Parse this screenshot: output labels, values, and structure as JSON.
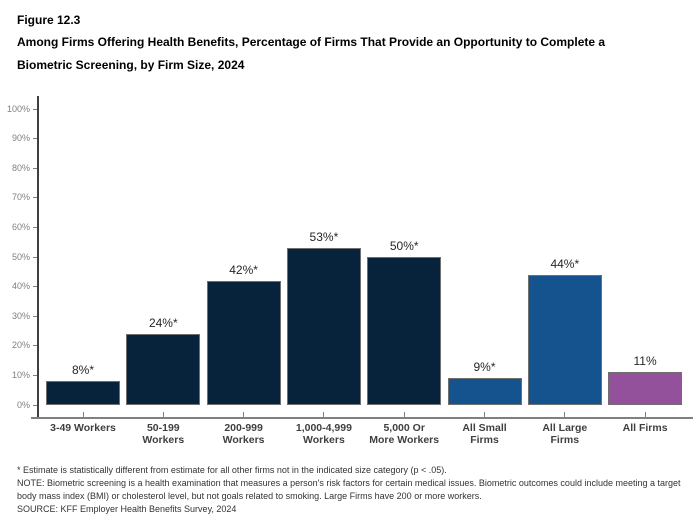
{
  "header": {
    "figure_label": "Figure 12.3",
    "title": "Among Firms Offering Health Benefits, Percentage of Firms That Provide an Opportunity to Complete a Biometric Screening, by Firm Size, 2024"
  },
  "chart_data": {
    "type": "bar",
    "categories": [
      "3-49 Workers",
      "50-199 Workers",
      "200-999 Workers",
      "1,000-4,999 Workers",
      "5,000 Or More Workers",
      "All Small Firms",
      "All Large Firms",
      "All Firms"
    ],
    "category_label_lines": [
      "3-49 Workers",
      "50-199\nWorkers",
      "200-999\nWorkers",
      "1,000-4,999\nWorkers",
      "5,000 Or\nMore Workers",
      "All Small\nFirms",
      "All Large\nFirms",
      "All Firms"
    ],
    "values": [
      8,
      24,
      42,
      53,
      50,
      9,
      44,
      11
    ],
    "value_labels": [
      "8%*",
      "24%*",
      "42%*",
      "53%*",
      "50%*",
      "9%*",
      "44%*",
      "11%"
    ],
    "bar_colors": [
      "#07223B",
      "#07223B",
      "#07223B",
      "#07223B",
      "#07223B",
      "#15538F",
      "#15538F",
      "#94519B"
    ],
    "title": "Among Firms Offering Health Benefits, Percentage of Firms That Provide an Opportunity to Complete a Biometric Screening, by Firm Size, 2024",
    "xlabel": "",
    "ylabel": "",
    "ylim": [
      0,
      100
    ],
    "y_tick_interval": 10,
    "y_tick_labels": [
      "0%",
      "10%",
      "20%",
      "30%",
      "40%",
      "50%",
      "60%",
      "70%",
      "80%",
      "90%",
      "100%"
    ],
    "grid": false,
    "legend_position": "none"
  },
  "colors": {
    "navy": "#07223B",
    "blue": "#15538F",
    "purple": "#94519B",
    "axis_line": "#808080",
    "y_axis_line": "#404040",
    "tick_label": "#808080",
    "category_label": "#404040",
    "value_label": "#262626"
  },
  "footer": {
    "footnote": "* Estimate is statistically different from estimate for all other firms not in the indicated size category (p < .05).",
    "note": "NOTE: Biometric screening is a health examination that measures a person's risk factors for certain medical issues. Biometric outcomes could include meeting a target body mass index (BMI) or cholesterol level, but not goals related to smoking.  Large Firms have 200 or more workers.",
    "source": "SOURCE: KFF Employer Health Benefits Survey, 2024"
  }
}
